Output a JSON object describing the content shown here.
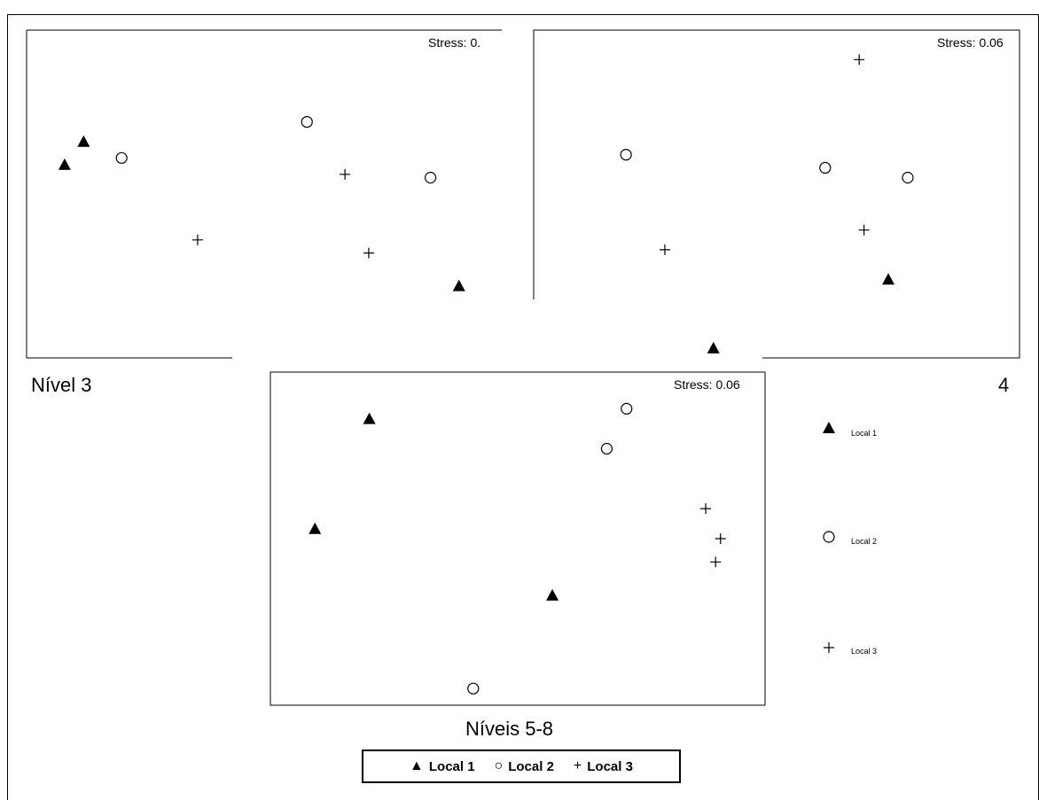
{
  "chart_data": [
    {
      "type": "scatter",
      "title": "Nível 3",
      "stress_label": "Stress: 0.",
      "xlim": [
        0,
        100
      ],
      "ylim": [
        0,
        100
      ],
      "series": [
        {
          "name": "Local 1",
          "marker": "triangle",
          "points": [
            [
              8,
              41
            ],
            [
              12,
              34
            ],
            [
              91,
              78
            ]
          ]
        },
        {
          "name": "Local 2",
          "marker": "circle",
          "points": [
            [
              20,
              39
            ],
            [
              59,
              28
            ],
            [
              85,
              45
            ]
          ]
        },
        {
          "name": "Local 3",
          "marker": "plus",
          "points": [
            [
              36,
              64
            ],
            [
              67,
              44
            ],
            [
              72,
              68
            ]
          ]
        }
      ]
    },
    {
      "type": "scatter",
      "title": "4",
      "stress_label": "Stress: 0.06",
      "xlim": [
        0,
        100
      ],
      "ylim": [
        0,
        100
      ],
      "series": [
        {
          "name": "Local 1",
          "marker": "triangle",
          "points": [
            [
              37,
              97
            ],
            [
              73,
              76
            ]
          ]
        },
        {
          "name": "Local 2",
          "marker": "circle",
          "points": [
            [
              19,
              38
            ],
            [
              60,
              42
            ],
            [
              77,
              45
            ]
          ]
        },
        {
          "name": "Local 3",
          "marker": "plus",
          "points": [
            [
              27,
              67
            ],
            [
              68,
              61
            ],
            [
              67,
              9
            ]
          ]
        }
      ]
    },
    {
      "type": "scatter",
      "title": "Níveis 5-8",
      "stress_label": "Stress: 0.06",
      "xlim": [
        0,
        100
      ],
      "ylim": [
        0,
        100
      ],
      "series": [
        {
          "name": "Local 1",
          "marker": "triangle",
          "points": [
            [
              20,
              14
            ],
            [
              9,
              47
            ],
            [
              57,
              67
            ]
          ]
        },
        {
          "name": "Local 2",
          "marker": "circle",
          "points": [
            [
              72,
              11
            ],
            [
              68,
              23
            ],
            [
              41,
              95
            ]
          ]
        },
        {
          "name": "Local 3",
          "marker": "plus",
          "points": [
            [
              88,
              41
            ],
            [
              91,
              50
            ],
            [
              90,
              57
            ]
          ]
        }
      ]
    }
  ],
  "side_legend": [
    {
      "marker": "triangle",
      "label": "Local 1"
    },
    {
      "marker": "circle",
      "label": "Local 2"
    },
    {
      "marker": "plus",
      "label": "Local 3"
    }
  ],
  "legend": [
    {
      "marker": "triangle",
      "symbol": "▲",
      "label": "Local 1"
    },
    {
      "marker": "circle",
      "symbol": "○",
      "label": "Local 2"
    },
    {
      "marker": "plus",
      "symbol": "+",
      "label": "Local 3"
    }
  ],
  "colors": {
    "marker": "#000000",
    "background": "#ffffff"
  }
}
